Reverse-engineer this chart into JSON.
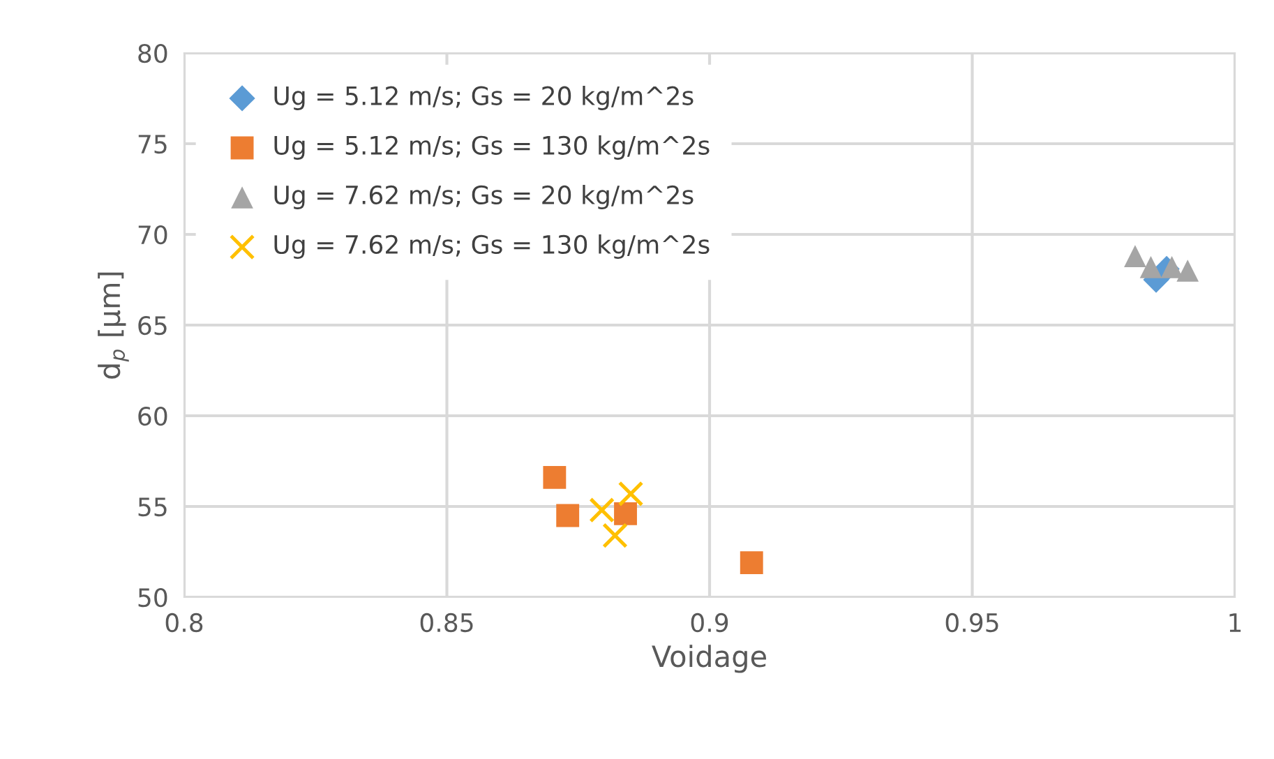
{
  "chart_data": {
    "type": "scatter",
    "xlabel": "Voidage",
    "ylabel": "d$_{p}$ [µm]",
    "xlim": [
      0.8,
      1
    ],
    "xticks": [
      {
        "value": 0.8,
        "label": "0.8"
      },
      {
        "value": 0.85,
        "label": "0.85"
      },
      {
        "value": 0.9,
        "label": "0.9"
      },
      {
        "value": 0.95,
        "label": "0.95"
      },
      {
        "value": 1,
        "label": "1"
      }
    ],
    "ylim": [
      50,
      80
    ],
    "yticks": [
      50,
      55,
      60,
      65,
      70,
      75,
      80
    ],
    "grid": true,
    "legend": "top left",
    "series": [
      {
        "name": "Ug = 5.12 m/s; Gs = 20 kg/m^2s",
        "color": "#5b9bd5",
        "marker": "diamond",
        "x": [
          0.985,
          0.987
        ],
        "values": [
          67.5,
          68.1
        ]
      },
      {
        "name": "Ug = 5.12 m/s; Gs = 130 kg/m^2s",
        "color": "#ed7d31",
        "marker": "square",
        "x": [
          0.8705,
          0.873,
          0.884,
          0.908
        ],
        "values": [
          56.6,
          54.5,
          54.6,
          51.9
        ]
      },
      {
        "name": "Ug = 7.62 m/s; Gs = 20 kg/m^2s",
        "color": "#a5a5a5",
        "marker": "triangle",
        "x": [
          0.981,
          0.984,
          0.988,
          0.991
        ],
        "values": [
          68.8,
          68.2,
          68.2,
          68.0
        ]
      },
      {
        "name": "Ug = 7.62 m/s; Gs = 130 kg/m^2s",
        "color": "#ffc000",
        "marker": "cross",
        "x": [
          0.8795,
          0.885,
          0.882
        ],
        "values": [
          54.8,
          55.7,
          53.4
        ]
      }
    ]
  }
}
